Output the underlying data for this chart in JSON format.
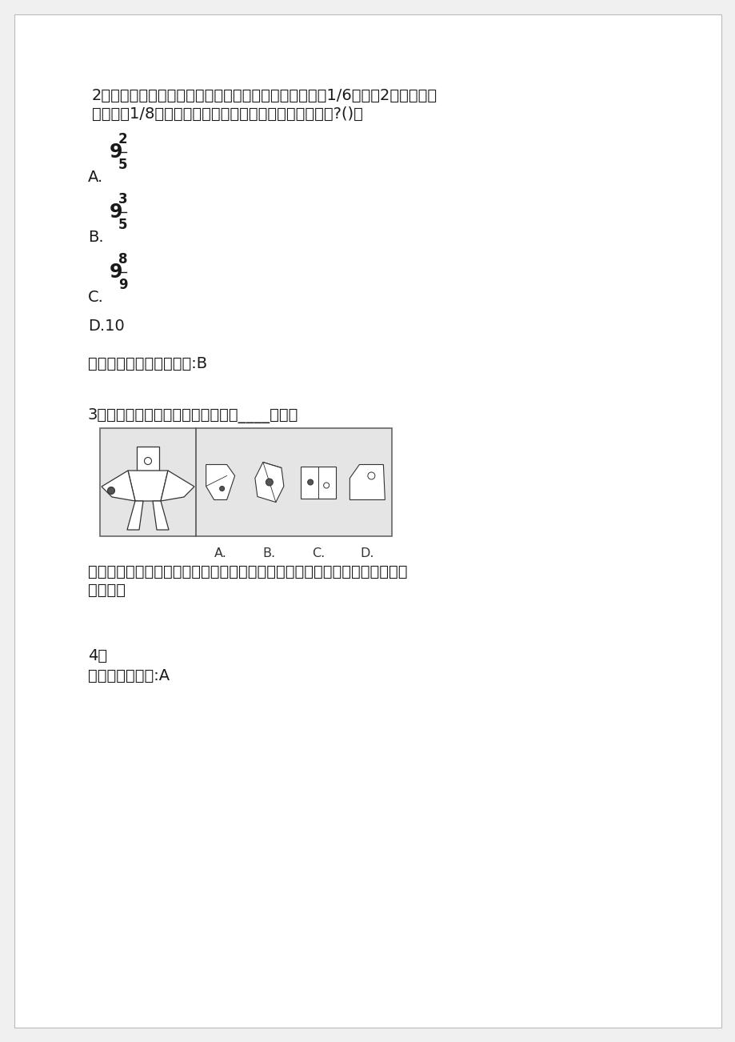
{
  "bg_color": "#f0f0f0",
  "page_bg": "#ffffff",
  "text_color": "#1a1a1a",
  "q2_line1": "2、师徒共同完成一批零件。徒弟四小时完成这批零件的1/6，师偨2小时完成这",
  "q2_line2": "批零件的1/8，师徒同时工作，多少小时可完成这批零件?()。",
  "optA_label": "A.",
  "optA_whole": "9",
  "optA_num": "2",
  "optA_den": "5",
  "optB_label": "B.",
  "optB_whole": "9",
  "optB_num": "3",
  "optB_den": "5",
  "optC_label": "C.",
  "optC_whole": "9",
  "optC_num": "8",
  "optC_den": "9",
  "optD_text": "D.10",
  "analysis2": "解析：参考答案答案参考:B",
  "q3_text": "3、左边的图形折叠后，形成右面的____图形。",
  "opt_labels": [
    "A.",
    "B.",
    "C.",
    "D."
  ],
  "analysis3_line1": "解析：参考答案请留意实心圆和空心圆的位置，以及它们在梯形面图案上的相",
  "analysis3_line2": "对位置。",
  "q4_text": "4、",
  "analysis4": "解析：参考答案:A"
}
